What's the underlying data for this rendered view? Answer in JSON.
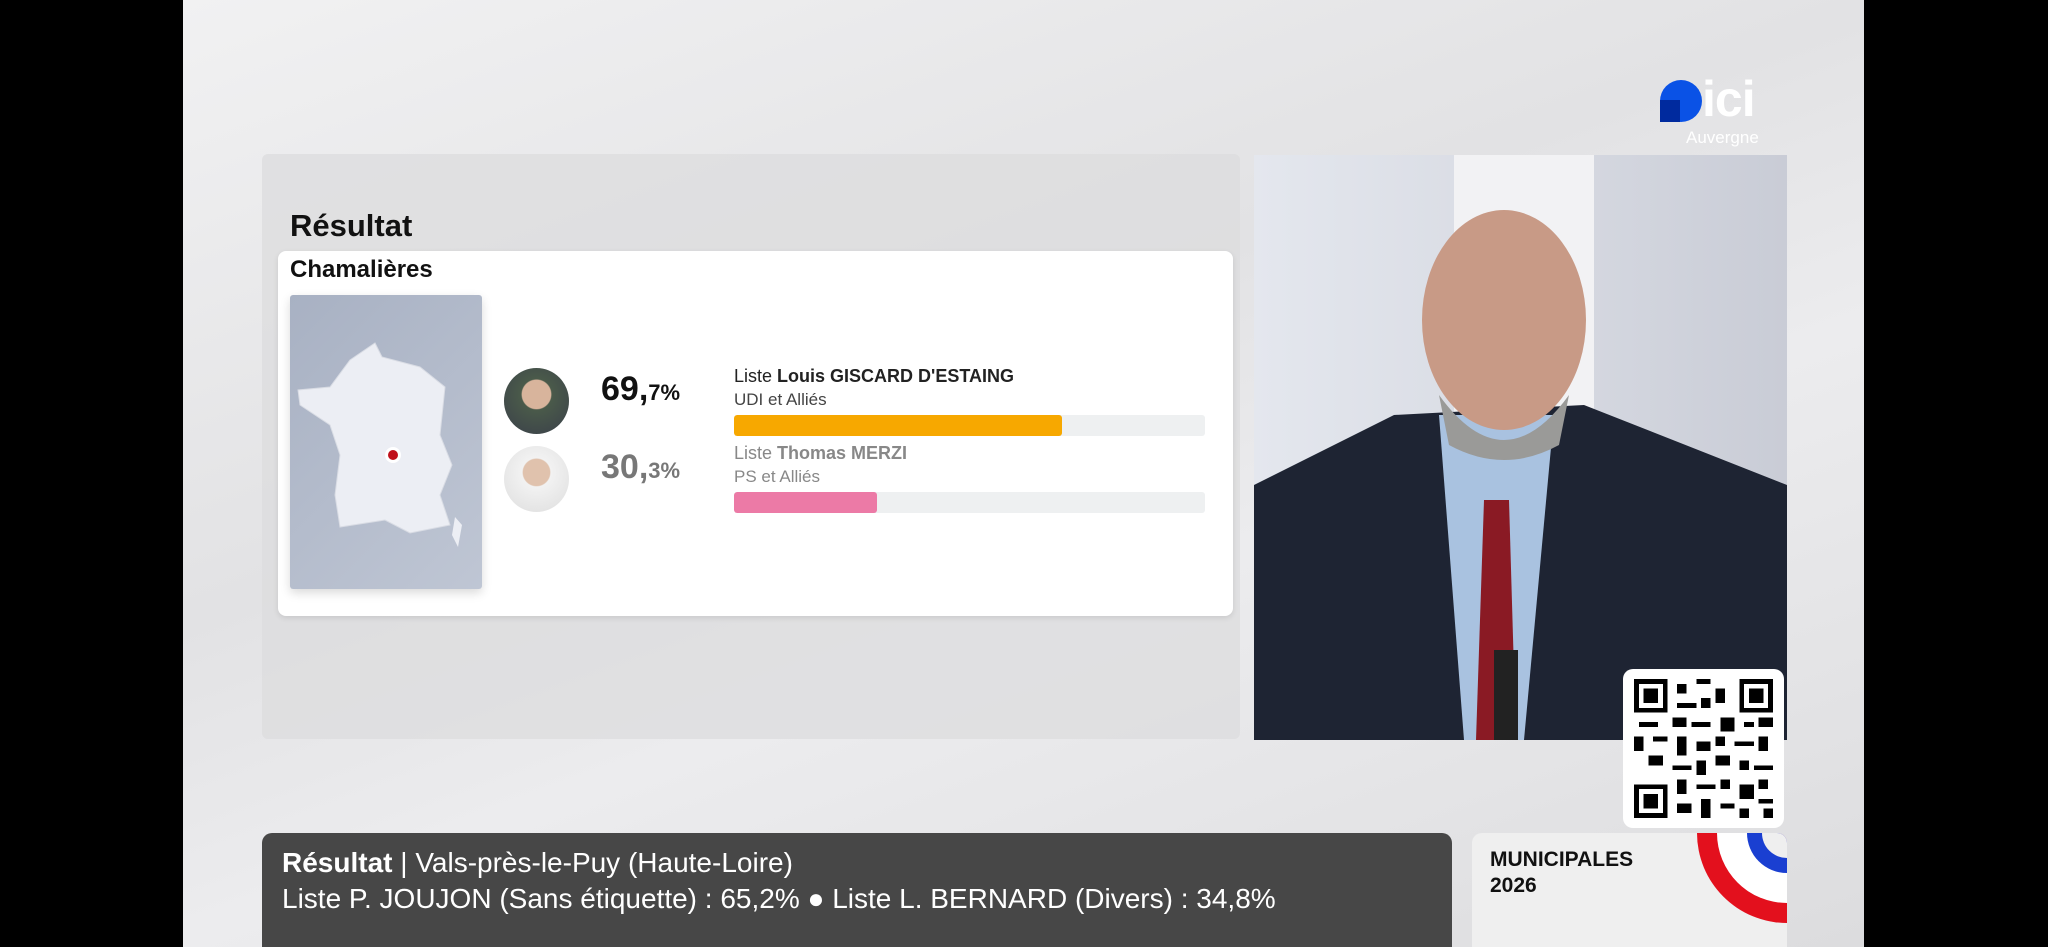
{
  "logo": {
    "brand": "ici",
    "region": "Auvergne",
    "colors": {
      "blue": "#0a52e6"
    }
  },
  "results": {
    "title": "Résultat",
    "city": "Chamalières",
    "candidates": [
      {
        "prefix": "Liste",
        "name": "Louis GISCARD D'ESTAING",
        "party": "UDI et Alliés",
        "pct_int": "69,",
        "pct_dec": "7%",
        "value": 69.7,
        "color": "#f7a800"
      },
      {
        "prefix": "Liste",
        "name": "Thomas MERZI",
        "party": "PS et Alliés",
        "pct_int": "30,",
        "pct_dec": "3%",
        "value": 30.3,
        "color": "#ec7aa6"
      }
    ]
  },
  "ticker": {
    "label": "Résultat",
    "sep": " | ",
    "place": "Vals-près-le-Puy (Haute-Loire)",
    "line2": "Liste P. JOUJON (Sans étiquette) : 65,2% ● Liste L. BERNARD (Divers) : 34,8%"
  },
  "badge": {
    "line1": "MUNICIPALES",
    "line2": "2026"
  }
}
